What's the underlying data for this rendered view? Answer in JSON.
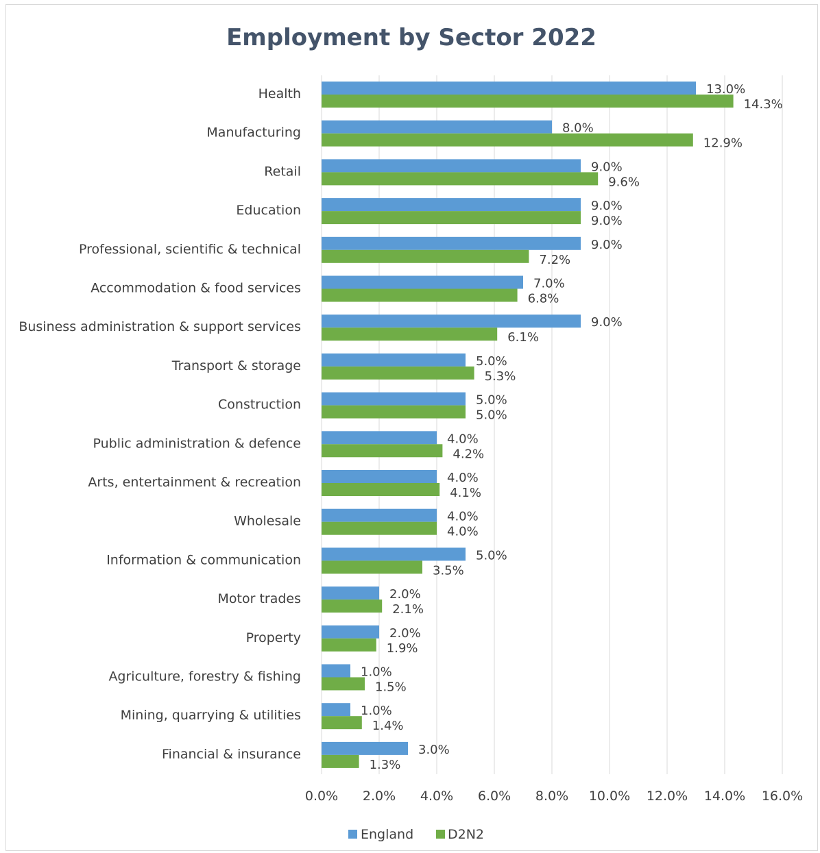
{
  "chart_data": {
    "type": "bar",
    "orientation": "horizontal",
    "title": "Employment by Sector 2022",
    "xlabel": "",
    "ylabel": "",
    "categories": [
      "Health",
      "Manufacturing",
      "Retail",
      "Education",
      "Professional, scientific & technical",
      "Accommodation & food services",
      "Business administration & support services",
      "Transport & storage",
      "Construction",
      "Public administration & defence",
      "Arts, entertainment & recreation",
      "Wholesale",
      "Information & communication",
      "Motor trades",
      "Property",
      "Agriculture, forestry & fishing",
      "Mining, quarrying & utilities",
      "Financial & insurance"
    ],
    "series": [
      {
        "name": "England",
        "color": "#5b9bd5",
        "values": [
          13.0,
          8.0,
          9.0,
          9.0,
          9.0,
          7.0,
          9.0,
          5.0,
          5.0,
          4.0,
          4.0,
          4.0,
          5.0,
          2.0,
          2.0,
          1.0,
          1.0,
          3.0
        ],
        "labels": [
          "13.0%",
          "8.0%",
          "9.0%",
          "9.0%",
          "9.0%",
          "7.0%",
          "9.0%",
          "5.0%",
          "5.0%",
          "4.0%",
          "4.0%",
          "4.0%",
          "5.0%",
          "2.0%",
          "2.0%",
          "1.0%",
          "1.0%",
          "3.0%"
        ]
      },
      {
        "name": "D2N2",
        "color": "#70ad47",
        "values": [
          14.3,
          12.9,
          9.6,
          9.0,
          7.2,
          6.8,
          6.1,
          5.3,
          5.0,
          4.2,
          4.1,
          4.0,
          3.5,
          2.1,
          1.9,
          1.5,
          1.4,
          1.3
        ],
        "labels": [
          "14.3%",
          "12.9%",
          "9.6%",
          "9.0%",
          "7.2%",
          "6.8%",
          "6.1%",
          "5.3%",
          "5.0%",
          "4.2%",
          "4.1%",
          "4.0%",
          "3.5%",
          "2.1%",
          "1.9%",
          "1.5%",
          "1.4%",
          "1.3%"
        ]
      }
    ],
    "xlim": [
      0,
      16
    ],
    "x_ticks": [
      0,
      2,
      4,
      6,
      8,
      10,
      12,
      14,
      16
    ],
    "x_tick_labels": [
      "0.0%",
      "2.0%",
      "4.0%",
      "6.0%",
      "8.0%",
      "10.0%",
      "12.0%",
      "14.0%",
      "16.0%"
    ],
    "grid": true,
    "legend_position": "bottom"
  }
}
